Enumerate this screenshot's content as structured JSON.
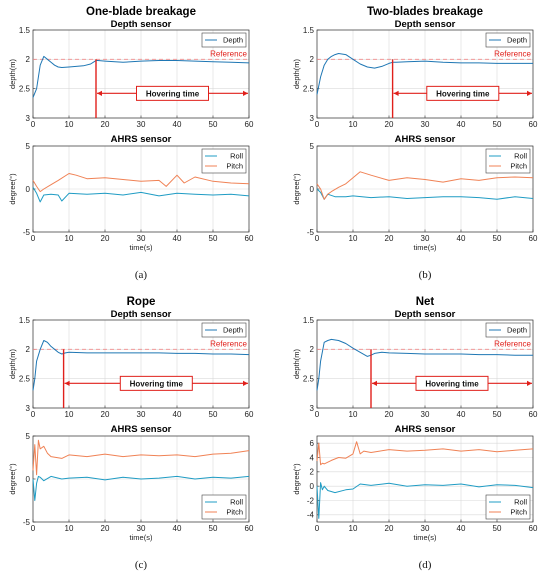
{
  "chart_data": [
    {
      "panel": "a",
      "title": "One-blade breakage",
      "caption": "(a)",
      "depth": {
        "type": "line",
        "title": "Depth sensor",
        "ylabel": "depth(m)",
        "xlim": [
          0,
          60
        ],
        "ylim_display_top_to_bottom": [
          1.5,
          3
        ],
        "yticks": [
          "1.5",
          "2",
          "2.5",
          "3"
        ],
        "xticks": [
          "0",
          "10",
          "20",
          "30",
          "40",
          "50",
          "60"
        ],
        "grid": true,
        "legend": "top-right",
        "reference": {
          "label": "Reference",
          "value": 2
        },
        "hovering": {
          "label": "Hovering time",
          "start": 17.5,
          "end": 60
        },
        "series": [
          {
            "name": "Depth",
            "color": "#1f77b4",
            "x": [
              0,
              1,
              2,
              3,
              4,
              5,
              6,
              7,
              8,
              10,
              12,
              14,
              16,
              17,
              17.5,
              18,
              20,
              25,
              30,
              35,
              40,
              45,
              50,
              55,
              60
            ],
            "y": [
              2.65,
              2.5,
              2.1,
              1.95,
              2.0,
              2.05,
              2.1,
              2.13,
              2.14,
              2.13,
              2.12,
              2.11,
              2.08,
              2.04,
              2.02,
              2.02,
              2.03,
              2.05,
              2.03,
              2.02,
              2.02,
              2.03,
              2.04,
              2.05,
              2.06
            ]
          }
        ]
      },
      "ahrs": {
        "type": "line",
        "title": "AHRS sensor",
        "ylabel": "degree(°)",
        "xlabel": "time(s)",
        "xlim": [
          0,
          60
        ],
        "ylim": [
          -5,
          5
        ],
        "yticks": [
          "5",
          "0",
          "-5"
        ],
        "xticks": [
          "0",
          "10",
          "20",
          "30",
          "40",
          "50",
          "60"
        ],
        "grid": true,
        "legend": "top-right",
        "series": [
          {
            "name": "Roll",
            "color": "#1f9cc4",
            "x": [
              0,
              1,
              2,
              3,
              5,
              7,
              8,
              10,
              15,
              20,
              25,
              30,
              35,
              40,
              45,
              50,
              55,
              60
            ],
            "y": [
              0.2,
              -0.5,
              -1.5,
              -0.7,
              -0.6,
              -0.7,
              -1.4,
              -0.5,
              -0.6,
              -0.5,
              -0.7,
              -0.4,
              -0.8,
              -0.5,
              -0.6,
              -0.7,
              -0.6,
              -0.8
            ]
          },
          {
            "name": "Pitch",
            "color": "#f08255",
            "x": [
              0,
              1,
              2,
              3,
              5,
              7,
              10,
              12,
              15,
              20,
              25,
              30,
              35,
              37,
              40,
              42,
              45,
              50,
              55,
              60
            ],
            "y": [
              1.0,
              0.3,
              -0.3,
              0.0,
              0.5,
              1.0,
              1.8,
              1.6,
              1.2,
              1.3,
              1.1,
              0.9,
              1.0,
              0.3,
              1.6,
              0.7,
              1.4,
              0.9,
              0.7,
              0.6
            ]
          }
        ]
      }
    },
    {
      "panel": "b",
      "title": "Two-blades breakage",
      "caption": "(b)",
      "depth": {
        "type": "line",
        "title": "Depth sensor",
        "ylabel": "depth(m)",
        "xlim": [
          0,
          60
        ],
        "ylim_display_top_to_bottom": [
          1.5,
          3
        ],
        "yticks": [
          "1.5",
          "2",
          "2.5",
          "3"
        ],
        "xticks": [
          "0",
          "10",
          "20",
          "30",
          "40",
          "50",
          "60"
        ],
        "grid": true,
        "legend": "top-right",
        "reference": {
          "label": "Reference",
          "value": 2
        },
        "hovering": {
          "label": "Hovering time",
          "start": 21,
          "end": 60
        },
        "series": [
          {
            "name": "Depth",
            "color": "#1f77b4",
            "x": [
              0,
              1,
              2,
              3,
              4,
              5,
              6,
              8,
              10,
              12,
              14,
              16,
              18,
              20,
              21,
              22,
              25,
              30,
              35,
              40,
              45,
              50,
              55,
              60
            ],
            "y": [
              2.6,
              2.3,
              2.1,
              2.0,
              1.95,
              1.92,
              1.9,
              1.92,
              2.0,
              2.08,
              2.13,
              2.15,
              2.12,
              2.07,
              2.05,
              2.05,
              2.04,
              2.03,
              2.05,
              2.06,
              2.06,
              2.07,
              2.07,
              2.07
            ]
          }
        ]
      },
      "ahrs": {
        "type": "line",
        "title": "AHRS sensor",
        "ylabel": "degree(°)",
        "xlabel": "time(s)",
        "xlim": [
          0,
          60
        ],
        "ylim": [
          -5,
          5
        ],
        "yticks": [
          "5",
          "0",
          "-5"
        ],
        "xticks": [
          "0",
          "10",
          "20",
          "30",
          "40",
          "50",
          "60"
        ],
        "grid": true,
        "legend": "top-right",
        "series": [
          {
            "name": "Roll",
            "color": "#1f9cc4",
            "x": [
              0,
              1,
              2,
              3,
              5,
              8,
              10,
              15,
              20,
              25,
              30,
              35,
              40,
              45,
              50,
              55,
              60
            ],
            "y": [
              0.0,
              -0.4,
              -1.2,
              -0.6,
              -0.9,
              -0.9,
              -0.8,
              -1.0,
              -0.9,
              -1.1,
              -1.0,
              -0.9,
              -0.9,
              -1.0,
              -1.2,
              -0.9,
              -1.1
            ]
          },
          {
            "name": "Pitch",
            "color": "#f08255",
            "x": [
              0,
              1,
              2,
              3,
              4,
              6,
              8,
              10,
              12,
              15,
              20,
              25,
              30,
              35,
              40,
              45,
              50,
              55,
              60
            ],
            "y": [
              0.6,
              0.0,
              -1.2,
              -0.6,
              -0.3,
              0.2,
              0.6,
              1.3,
              2.0,
              1.6,
              1.0,
              1.3,
              1.1,
              0.8,
              1.2,
              1.0,
              1.3,
              1.4,
              1.3
            ]
          }
        ]
      }
    },
    {
      "panel": "c",
      "title": "Rope",
      "caption": "(c)",
      "depth": {
        "type": "line",
        "title": "Depth sensor",
        "ylabel": "depth(m)",
        "xlim": [
          0,
          60
        ],
        "ylim_display_top_to_bottom": [
          1.5,
          3
        ],
        "yticks": [
          "1.5",
          "2",
          "2.5",
          "3"
        ],
        "xticks": [
          "0",
          "10",
          "20",
          "30",
          "40",
          "50",
          "60"
        ],
        "grid": true,
        "legend": "top-right",
        "reference": {
          "label": "Reference",
          "value": 2
        },
        "hovering": {
          "label": "Hovering time",
          "start": 8.5,
          "end": 60
        },
        "series": [
          {
            "name": "Depth",
            "color": "#1f77b4",
            "x": [
              0,
              0.5,
              1,
              2,
              3,
              4,
              5,
              6,
              7,
              8,
              9,
              10,
              15,
              20,
              25,
              30,
              35,
              40,
              45,
              50,
              55,
              60
            ],
            "y": [
              2.7,
              2.5,
              2.2,
              2.0,
              1.85,
              1.88,
              1.95,
              2.0,
              2.05,
              2.08,
              2.06,
              2.05,
              2.06,
              2.06,
              2.06,
              2.06,
              2.06,
              2.07,
              2.07,
              2.08,
              2.08,
              2.09
            ]
          }
        ]
      },
      "ahrs": {
        "type": "line",
        "title": "AHRS sensor",
        "ylabel": "degree(°)",
        "xlabel": "time(s)",
        "xlim": [
          0,
          60
        ],
        "ylim": [
          -5,
          5
        ],
        "yticks": [
          "5",
          "0",
          "-5"
        ],
        "xticks": [
          "0",
          "10",
          "20",
          "30",
          "40",
          "50",
          "60"
        ],
        "grid": true,
        "legend": "bottom-right",
        "series": [
          {
            "name": "Roll",
            "color": "#1f9cc4",
            "x": [
              0,
              0.5,
              1,
              1.5,
              2,
              3,
              5,
              8,
              10,
              15,
              20,
              25,
              30,
              35,
              40,
              45,
              50,
              55,
              60
            ],
            "y": [
              0.0,
              -2.5,
              -0.5,
              0.3,
              0.2,
              -0.2,
              0.3,
              0.0,
              0.1,
              0.2,
              -0.1,
              0.2,
              0.0,
              0.1,
              0.3,
              0.0,
              0.2,
              0.1,
              0.3
            ]
          },
          {
            "name": "Pitch",
            "color": "#f08255",
            "x": [
              0,
              0.5,
              1,
              1.5,
              2,
              3,
              4,
              5,
              8,
              10,
              15,
              20,
              25,
              30,
              35,
              40,
              45,
              50,
              55,
              60
            ],
            "y": [
              1.0,
              4.0,
              0.5,
              4.5,
              3.5,
              3.8,
              3.0,
              2.6,
              2.4,
              2.8,
              2.6,
              2.9,
              2.6,
              2.8,
              2.7,
              2.8,
              2.6,
              2.9,
              3.0,
              3.3
            ]
          }
        ]
      }
    },
    {
      "panel": "d",
      "title": "Net",
      "caption": "(d)",
      "depth": {
        "type": "line",
        "title": "Depth sensor",
        "ylabel": "depth(m)",
        "xlim": [
          0,
          60
        ],
        "ylim_display_top_to_bottom": [
          1.5,
          3
        ],
        "yticks": [
          "1.5",
          "2",
          "2.5",
          "3"
        ],
        "xticks": [
          "0",
          "10",
          "20",
          "30",
          "40",
          "50",
          "60"
        ],
        "grid": true,
        "legend": "top-right",
        "reference": {
          "label": "Reference",
          "value": 2
        },
        "hovering": {
          "label": "Hovering time",
          "start": 15,
          "end": 60
        },
        "series": [
          {
            "name": "Depth",
            "color": "#1f77b4",
            "x": [
              0,
              0.5,
              1,
              2,
              3,
              4,
              6,
              8,
              10,
              12,
              14,
              15,
              16,
              18,
              20,
              25,
              30,
              35,
              40,
              45,
              50,
              55,
              60
            ],
            "y": [
              2.7,
              2.5,
              2.2,
              1.88,
              1.85,
              1.83,
              1.85,
              1.9,
              1.98,
              2.05,
              2.12,
              2.1,
              2.07,
              2.05,
              2.06,
              2.07,
              2.08,
              2.08,
              2.08,
              2.09,
              2.09,
              2.1,
              2.1
            ]
          }
        ]
      },
      "ahrs": {
        "type": "line",
        "title": "AHRS sensor",
        "ylabel": "degree(°)",
        "xlabel": "time(s)",
        "xlim": [
          0,
          60
        ],
        "ylim": [
          -5,
          7
        ],
        "yticks": [
          "6",
          "4",
          "2",
          "0",
          "-2",
          "-4"
        ],
        "xticks": [
          "0",
          "10",
          "20",
          "30",
          "40",
          "50",
          "60"
        ],
        "grid": true,
        "legend": "bottom-right",
        "series": [
          {
            "name": "Roll",
            "color": "#1f9cc4",
            "x": [
              0,
              0.5,
              1,
              1.5,
              2,
              3,
              5,
              8,
              10,
              12,
              15,
              20,
              25,
              30,
              35,
              40,
              45,
              50,
              55,
              60
            ],
            "y": [
              0.0,
              -4.5,
              0.5,
              -0.5,
              0.0,
              -0.6,
              -0.9,
              -0.5,
              -0.4,
              0.3,
              0.1,
              0.4,
              0.0,
              0.2,
              0.1,
              0.3,
              -0.1,
              0.2,
              0.1,
              -0.2
            ]
          },
          {
            "name": "Pitch",
            "color": "#f08255",
            "x": [
              0,
              0.5,
              1,
              1.5,
              2,
              4,
              6,
              8,
              10,
              11,
              12,
              13,
              15,
              20,
              25,
              30,
              35,
              40,
              45,
              50,
              55,
              60
            ],
            "y": [
              3.5,
              6.0,
              3.0,
              3.2,
              3.1,
              3.6,
              4.0,
              3.9,
              4.5,
              6.2,
              4.5,
              4.9,
              4.7,
              5.1,
              4.9,
              5.0,
              5.2,
              4.9,
              5.1,
              4.8,
              5.0,
              5.2
            ]
          }
        ]
      }
    }
  ]
}
